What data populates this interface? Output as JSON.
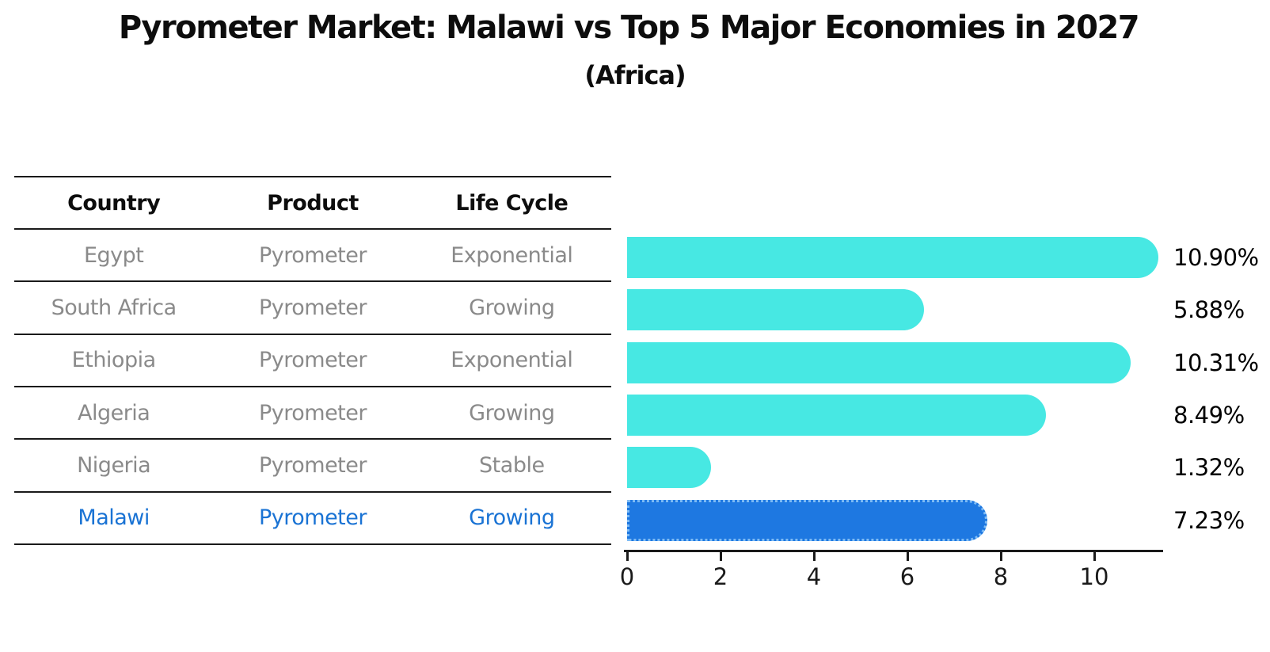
{
  "title": "Pyrometer Market: Malawi vs Top 5 Major Economies in 2027",
  "subtitle": "(Africa)",
  "table": {
    "headers": [
      "Country",
      "Product",
      "Life Cycle"
    ]
  },
  "chart_data": {
    "type": "bar",
    "orientation": "horizontal",
    "title": "Pyrometer Market: Malawi vs Top 5 Major Economies in 2027",
    "subtitle": "(Africa)",
    "categories": [
      "Egypt",
      "South Africa",
      "Ethiopia",
      "Algeria",
      "Nigeria",
      "Malawi"
    ],
    "values": [
      10.9,
      5.88,
      10.31,
      8.49,
      1.32,
      7.23
    ],
    "value_labels": [
      "10.90%",
      "5.88%",
      "10.31%",
      "8.49%",
      "1.32%",
      "7.23%"
    ],
    "table_columns": [
      "Country",
      "Product",
      "Life Cycle"
    ],
    "table_rows": [
      [
        "Egypt",
        "Pyrometer",
        "Exponential"
      ],
      [
        "South Africa",
        "Pyrometer",
        "Growing"
      ],
      [
        "Ethiopia",
        "Pyrometer",
        "Exponential"
      ],
      [
        "Algeria",
        "Pyrometer",
        "Growing"
      ],
      [
        "Nigeria",
        "Pyrometer",
        "Stable"
      ],
      [
        "Malawi",
        "Pyrometer",
        "Growing"
      ]
    ],
    "highlighted_category": "Malawi",
    "xticks": [
      0,
      2,
      4,
      6,
      8,
      10
    ],
    "xlim": [
      0,
      11.5
    ],
    "xlabel": "",
    "ylabel": "",
    "grid": false,
    "legend": "none",
    "bar_color": "#47e8e3",
    "highlight_bar_color": "#1e78e1",
    "highlight_border_color": "#7fbcf5",
    "highlight_text_color": "#1a73d4"
  }
}
